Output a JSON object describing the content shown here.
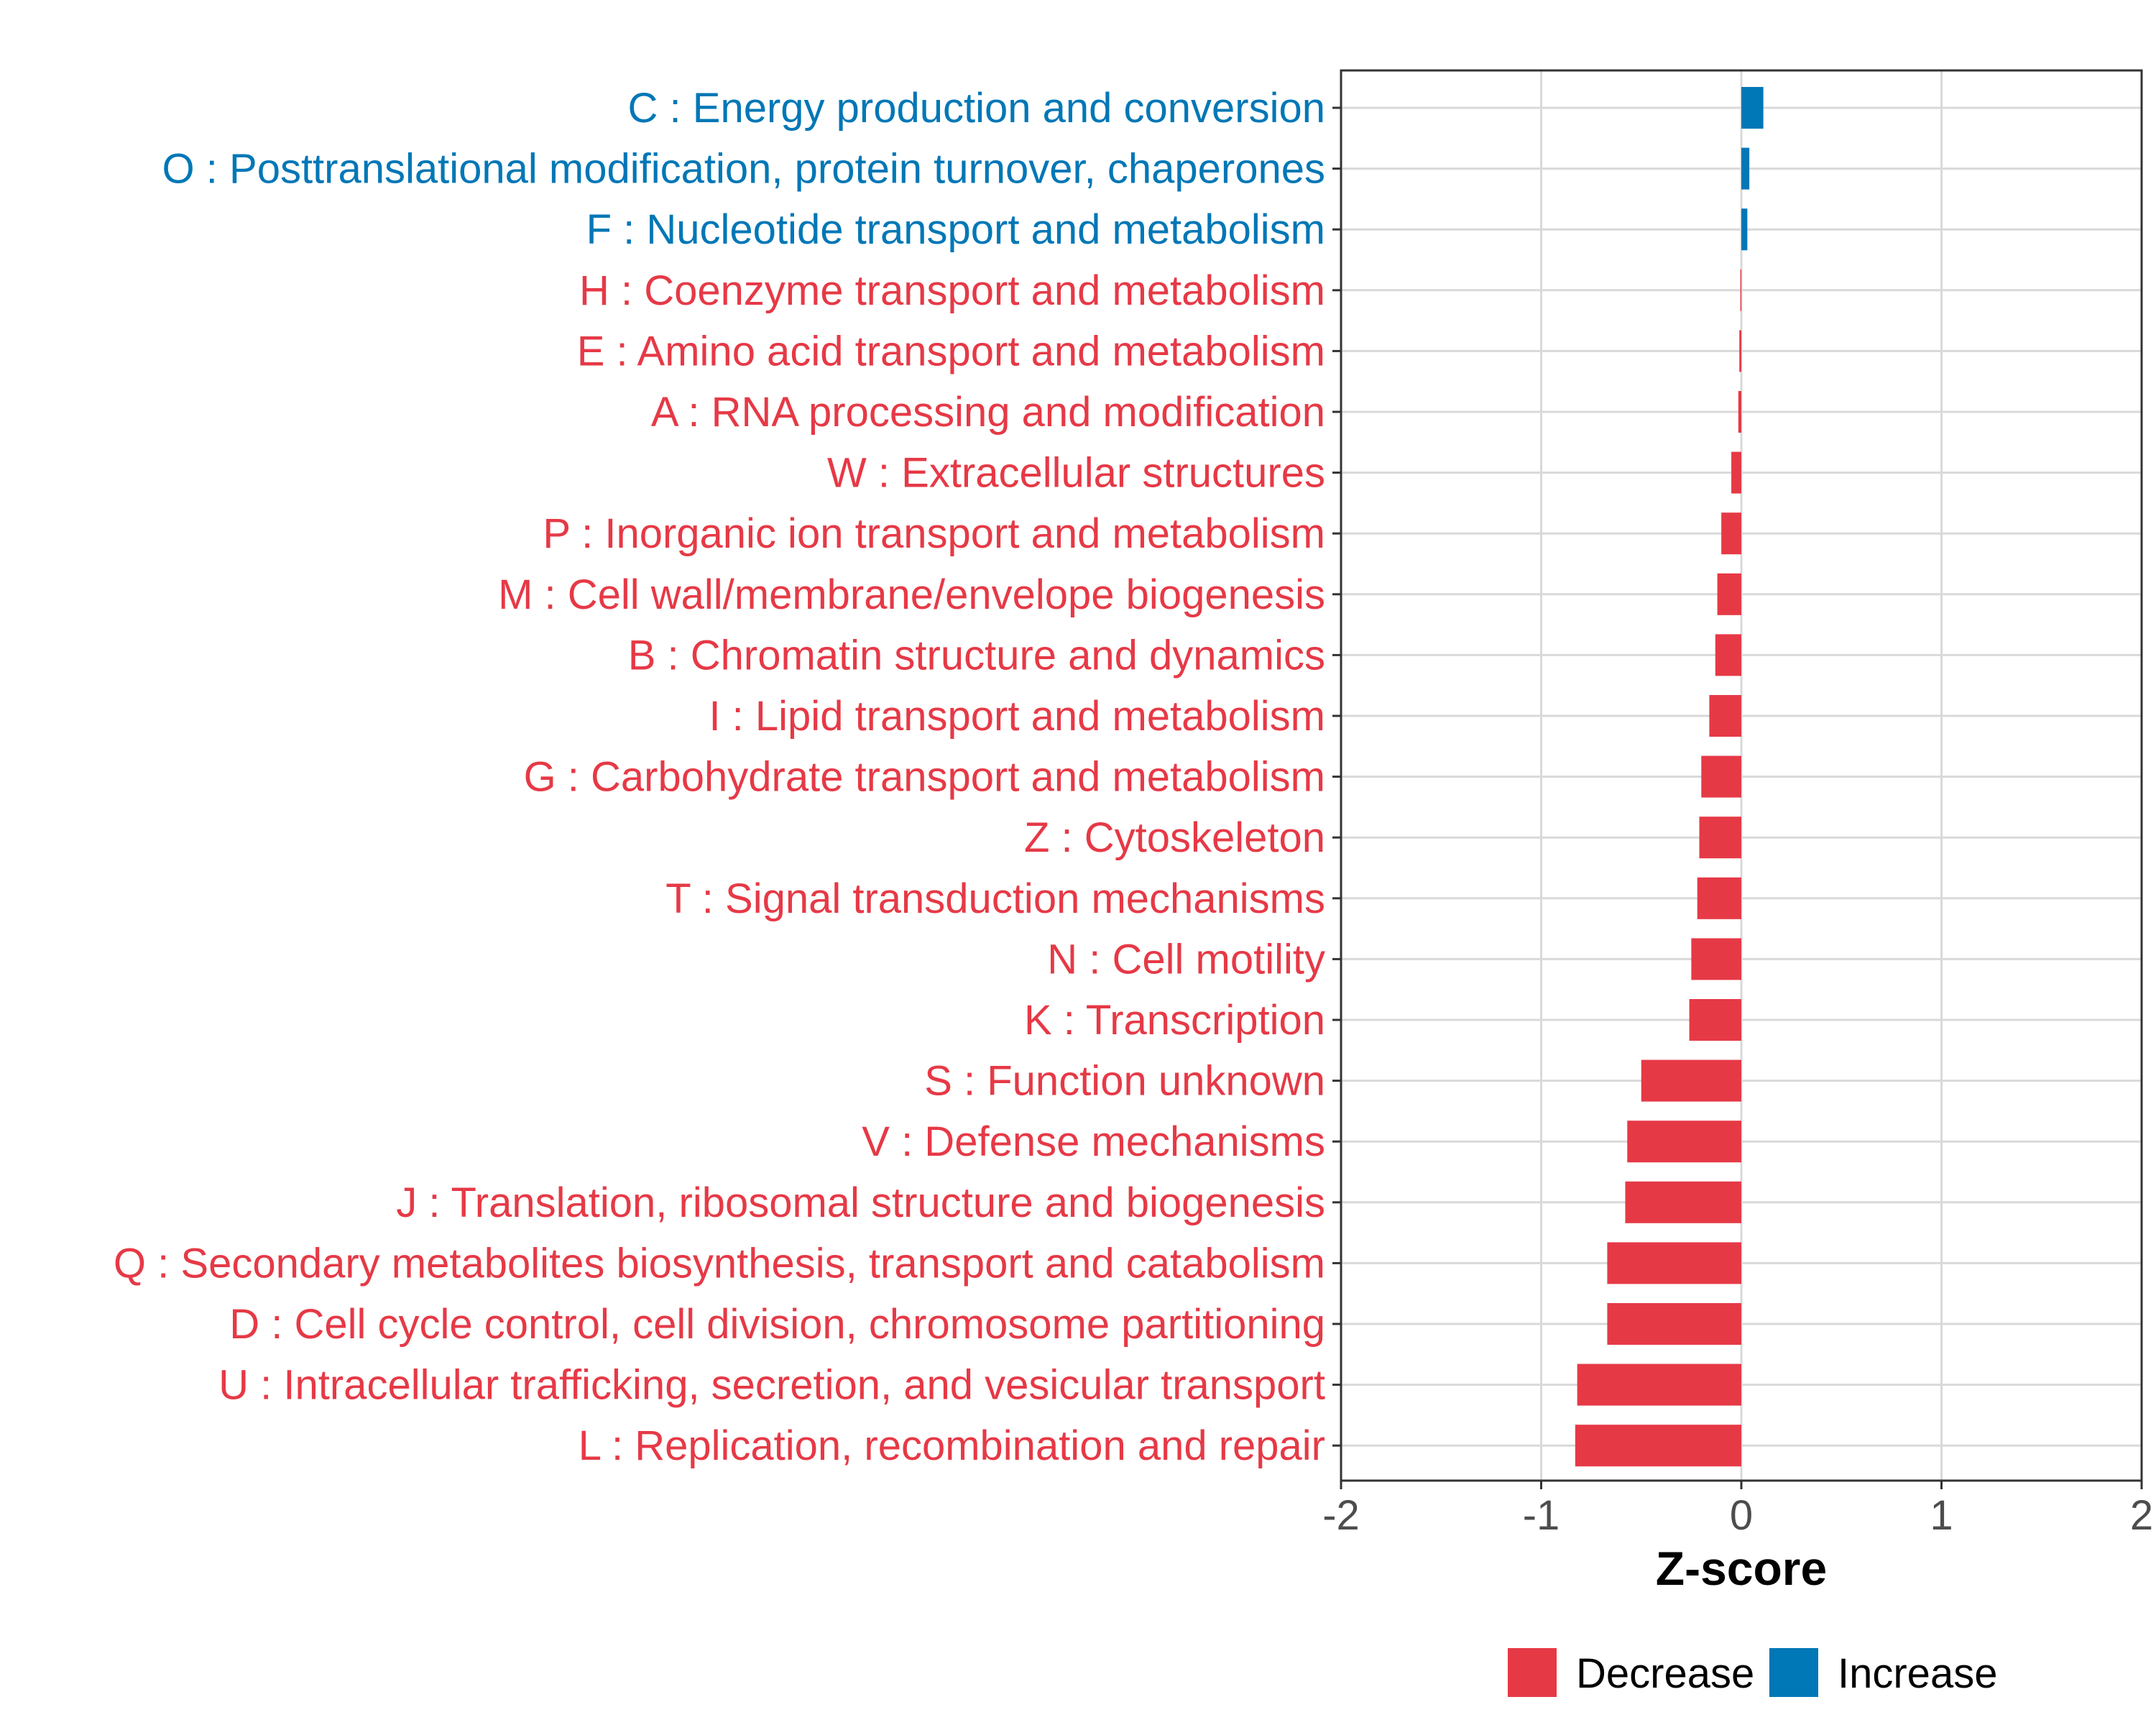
{
  "chart_data": {
    "type": "bar",
    "orientation": "horizontal",
    "xlabel": "Z-score",
    "ylabel": "",
    "xlim": [
      -2,
      2
    ],
    "xticks": [
      -2,
      -1,
      0,
      1,
      2
    ],
    "tick_labels": [
      "-2",
      "-1",
      "0",
      "1",
      "2"
    ],
    "grid": true,
    "legend_position": "bottom",
    "legend": [
      {
        "name": "Decrease",
        "color": "#E63946"
      },
      {
        "name": "Increase",
        "color": "#0077B6"
      }
    ],
    "categories": [
      {
        "label": "C : Energy production and conversion",
        "value": 0.11,
        "group": "Increase"
      },
      {
        "label": "O : Posttranslational modification, protein turnover, chaperones",
        "value": 0.04,
        "group": "Increase"
      },
      {
        "label": "F : Nucleotide transport and metabolism",
        "value": 0.03,
        "group": "Increase"
      },
      {
        "label": "H : Coenzyme transport and metabolism",
        "value": -0.005,
        "group": "Decrease"
      },
      {
        "label": "E : Amino acid transport and metabolism",
        "value": -0.01,
        "group": "Decrease"
      },
      {
        "label": "A : RNA processing and modification",
        "value": -0.015,
        "group": "Decrease"
      },
      {
        "label": "W : Extracellular structures",
        "value": -0.05,
        "group": "Decrease"
      },
      {
        "label": "P : Inorganic ion transport and metabolism",
        "value": -0.1,
        "group": "Decrease"
      },
      {
        "label": "M : Cell wall/membrane/envelope biogenesis",
        "value": -0.12,
        "group": "Decrease"
      },
      {
        "label": "B : Chromatin structure and dynamics",
        "value": -0.13,
        "group": "Decrease"
      },
      {
        "label": "I : Lipid transport and metabolism",
        "value": -0.16,
        "group": "Decrease"
      },
      {
        "label": "G : Carbohydrate transport and metabolism",
        "value": -0.2,
        "group": "Decrease"
      },
      {
        "label": "Z : Cytoskeleton",
        "value": -0.21,
        "group": "Decrease"
      },
      {
        "label": "T : Signal transduction mechanisms",
        "value": -0.22,
        "group": "Decrease"
      },
      {
        "label": "N : Cell motility",
        "value": -0.25,
        "group": "Decrease"
      },
      {
        "label": "K : Transcription",
        "value": -0.26,
        "group": "Decrease"
      },
      {
        "label": "S : Function unknown",
        "value": -0.5,
        "group": "Decrease"
      },
      {
        "label": "V : Defense mechanisms",
        "value": -0.57,
        "group": "Decrease"
      },
      {
        "label": "J : Translation, ribosomal structure and biogenesis",
        "value": -0.58,
        "group": "Decrease"
      },
      {
        "label": "Q : Secondary metabolites biosynthesis, transport and catabolism",
        "value": -0.67,
        "group": "Decrease"
      },
      {
        "label": "D : Cell cycle control, cell division, chromosome partitioning",
        "value": -0.67,
        "group": "Decrease"
      },
      {
        "label": "U : Intracellular trafficking, secretion, and vesicular transport",
        "value": -0.82,
        "group": "Decrease"
      },
      {
        "label": "L : Replication, recombination and repair",
        "value": -0.83,
        "group": "Decrease"
      }
    ]
  }
}
